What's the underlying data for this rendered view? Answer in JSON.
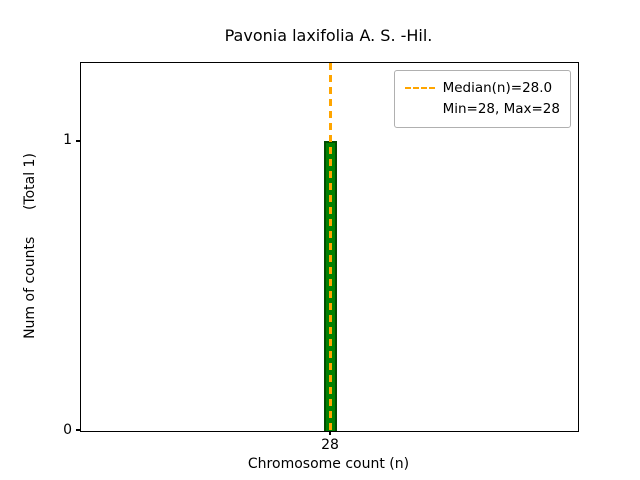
{
  "chart_data": {
    "type": "bar",
    "title": "Pavonia laxifolia A. S. -Hil.",
    "xlabel": "Chromosome count (n)",
    "ylabel": "Num of counts      (Total 1)",
    "categories": [
      28
    ],
    "values": [
      1
    ],
    "total_counts": 1,
    "median": 28.0,
    "min": 28,
    "max": 28,
    "x_tick_labels": [
      "28"
    ],
    "y_tick_labels": [
      "0",
      "1"
    ],
    "y_ticks": [
      0,
      1
    ],
    "ylim": [
      0,
      1.27
    ],
    "grid": false,
    "legend": {
      "position": "upper right",
      "entries": [
        "Median(n)=28.0",
        "Min=28, Max=28"
      ]
    },
    "colors": {
      "bar_fill": "#008000",
      "bar_edge": "#004d00",
      "median_line": "#ffa500",
      "spines": "#000000"
    }
  }
}
